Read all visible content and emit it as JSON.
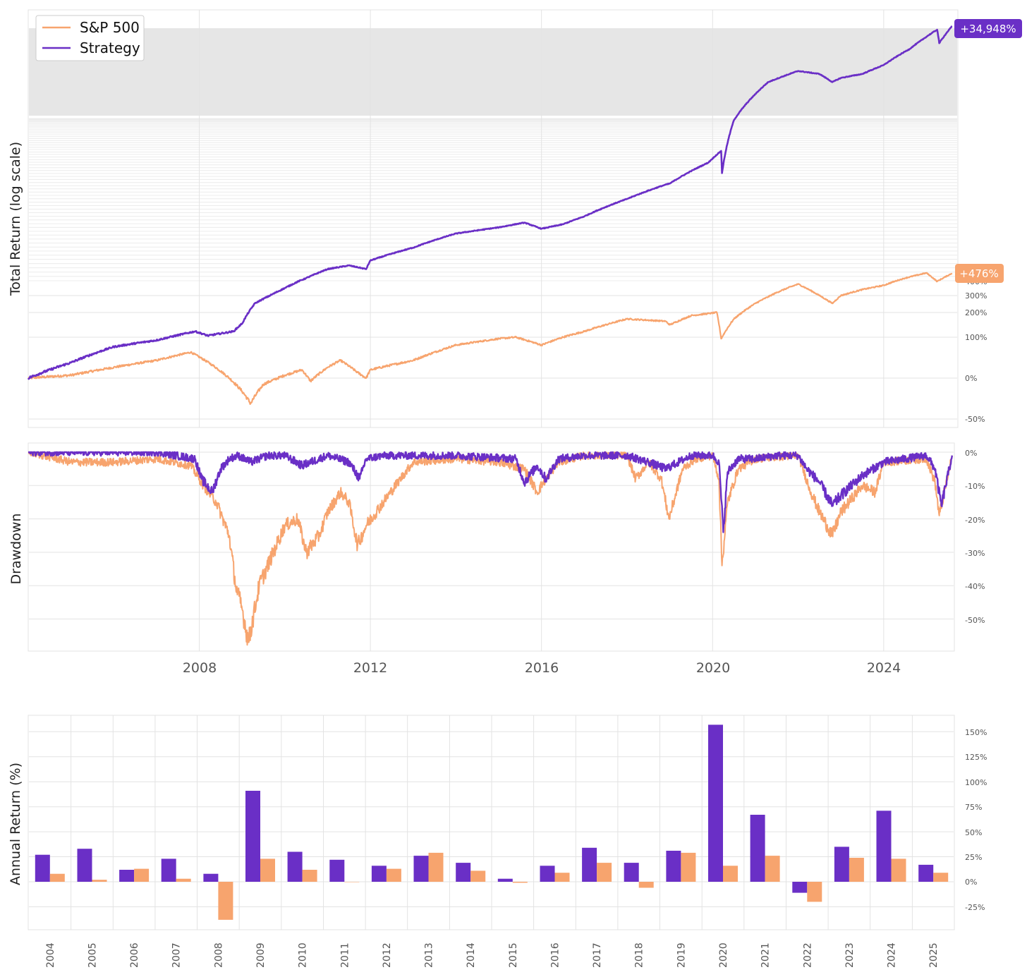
{
  "colors": {
    "strategy": "#6a2fc6",
    "sp500": "#f7a46e",
    "grid": "#e3e3e3",
    "band": "#e6e6e6"
  },
  "legend": {
    "items": [
      "S&P 500",
      "Strategy"
    ],
    "placement": "top-left"
  },
  "labels": {
    "total_return_ylabel": "Total Return (log scale)",
    "drawdown_ylabel": "Drawdown",
    "annual_ylabel": "Annual Return (%)",
    "strategy_final_tag": "+34,948%",
    "sp500_final_tag": "+476%"
  },
  "chart_data": [
    {
      "type": "line",
      "ylabel": "Total Return (log scale)",
      "yscale": "log",
      "yticks": [
        "400%",
        "300%",
        "200%",
        "100%",
        "0%",
        "-50%"
      ],
      "xticks": [
        "2008",
        "2012",
        "2016",
        "2020",
        "2024"
      ],
      "series": [
        {
          "name": "Strategy",
          "x": [
            2004.0,
            2005.0,
            2006.0,
            2007.0,
            2007.9,
            2008.2,
            2008.8,
            2009.0,
            2009.3,
            2010.0,
            2010.5,
            2011.0,
            2011.5,
            2011.9,
            2012.0,
            2013.0,
            2014.0,
            2015.0,
            2015.6,
            2016.0,
            2016.5,
            2017.0,
            2018.0,
            2018.9,
            2019.0,
            2019.9,
            2020.2,
            2020.22,
            2020.5,
            2021.0,
            2021.3,
            2022.0,
            2022.5,
            2022.8,
            2023.0,
            2023.5,
            2024.0,
            2024.6,
            2024.9,
            2025.25,
            2025.3,
            2025.6
          ],
          "values": [
            0,
            30,
            70,
            90,
            120,
            105,
            120,
            150,
            250,
            350,
            430,
            520,
            560,
            520,
            620,
            800,
            1050,
            1180,
            1290,
            1150,
            1250,
            1450,
            2000,
            2550,
            2600,
            3700,
            4500,
            3100,
            7500,
            11500,
            14000,
            16800,
            16000,
            14000,
            15000,
            16000,
            18500,
            24000,
            28000,
            33000,
            26500,
            34948
          ]
        },
        {
          "name": "S&P 500",
          "x": [
            2004.0,
            2005.0,
            2006.0,
            2007.0,
            2007.8,
            2008.3,
            2008.7,
            2009.0,
            2009.2,
            2009.5,
            2010.0,
            2010.4,
            2010.6,
            2011.0,
            2011.3,
            2011.7,
            2011.9,
            2012.0,
            2013.0,
            2014.0,
            2015.0,
            2015.4,
            2016.0,
            2016.5,
            2017.0,
            2018.0,
            2018.9,
            2019.0,
            2019.5,
            2020.1,
            2020.2,
            2020.5,
            2021.0,
            2021.5,
            2022.0,
            2022.5,
            2022.8,
            2023.0,
            2023.5,
            2024.0,
            2024.5,
            2025.0,
            2025.25,
            2025.6
          ],
          "values": [
            0,
            5,
            20,
            35,
            55,
            25,
            0,
            -20,
            -35,
            -10,
            5,
            15,
            -5,
            20,
            35,
            10,
            0,
            15,
            35,
            75,
            95,
            100,
            75,
            100,
            120,
            170,
            160,
            145,
            185,
            200,
            95,
            170,
            250,
            320,
            380,
            300,
            250,
            300,
            340,
            370,
            430,
            480,
            400,
            476
          ]
        }
      ]
    },
    {
      "type": "line",
      "ylabel": "Drawdown",
      "yticks": [
        "0%",
        "-10%",
        "-20%",
        "-30%",
        "-40%",
        "-50%"
      ],
      "xticks": [
        "2008",
        "2012",
        "2016",
        "2020",
        "2024"
      ],
      "series": [
        {
          "name": "Strategy",
          "x": [
            2004.0,
            2007.0,
            2007.9,
            2008.05,
            2008.3,
            2008.5,
            2008.7,
            2008.9,
            2009.2,
            2009.6,
            2010.0,
            2010.4,
            2011.0,
            2011.5,
            2011.75,
            2011.9,
            2012.3,
            2013.0,
            2014.0,
            2015.4,
            2015.6,
            2015.9,
            2016.1,
            2016.4,
            2017.0,
            2018.0,
            2018.5,
            2018.9,
            2019.5,
            2020.0,
            2020.15,
            2020.25,
            2020.35,
            2020.6,
            2021.0,
            2021.5,
            2022.0,
            2022.2,
            2022.5,
            2022.8,
            2023.0,
            2023.5,
            2024.0,
            2025.0,
            2025.2,
            2025.35,
            2025.6
          ],
          "values": [
            0,
            0,
            -2,
            -8,
            -12,
            -5,
            -2,
            -1,
            -3,
            -1,
            -1,
            -4,
            -1,
            -3,
            -8,
            -2,
            -1,
            -1,
            -1,
            -2,
            -9,
            -4,
            -8,
            -2,
            -1,
            -1,
            -3,
            -5,
            -1,
            -1,
            -3,
            -24,
            -6,
            -2,
            -2,
            -1,
            -1,
            -5,
            -9,
            -16,
            -13,
            -7,
            -3,
            -1,
            -5,
            -16,
            -1
          ]
        },
        {
          "name": "S&P 500",
          "x": [
            2004.0,
            2005.0,
            2006.0,
            2007.0,
            2007.8,
            2008.1,
            2008.4,
            2008.7,
            2008.85,
            2009.0,
            2009.15,
            2009.4,
            2009.8,
            2010.0,
            2010.3,
            2010.5,
            2010.8,
            2011.0,
            2011.3,
            2011.5,
            2011.7,
            2011.9,
            2012.3,
            2012.7,
            2013.0,
            2014.0,
            2015.0,
            2015.6,
            2015.9,
            2016.1,
            2016.4,
            2017.0,
            2018.0,
            2018.2,
            2018.5,
            2018.8,
            2018.98,
            2019.3,
            2019.6,
            2020.0,
            2020.15,
            2020.22,
            2020.35,
            2020.6,
            2021.0,
            2022.0,
            2022.3,
            2022.5,
            2022.8,
            2023.0,
            2023.5,
            2023.8,
            2024.0,
            2025.0,
            2025.2,
            2025.3,
            2025.6
          ],
          "values": [
            0,
            -3,
            -3,
            -2,
            -4,
            -10,
            -15,
            -25,
            -40,
            -47,
            -57,
            -40,
            -28,
            -22,
            -20,
            -30,
            -25,
            -18,
            -12,
            -15,
            -28,
            -22,
            -15,
            -8,
            -3,
            -2,
            -3,
            -5,
            -12,
            -8,
            -3,
            -1,
            -1,
            -8,
            -3,
            -8,
            -20,
            -5,
            -2,
            -1,
            -8,
            -34,
            -15,
            -5,
            -2,
            -1,
            -12,
            -18,
            -25,
            -18,
            -10,
            -12,
            -3,
            -2,
            -9,
            -19,
            -1
          ]
        }
      ]
    },
    {
      "type": "bar",
      "ylabel": "Annual Return (%)",
      "yticks": [
        "150%",
        "125%",
        "100%",
        "75%",
        "50%",
        "25%",
        "0%",
        "-25%"
      ],
      "categories": [
        "2004",
        "2005",
        "2006",
        "2007",
        "2008",
        "2009",
        "2010",
        "2011",
        "2012",
        "2013",
        "2014",
        "2015",
        "2016",
        "2017",
        "2018",
        "2019",
        "2020",
        "2021",
        "2022",
        "2023",
        "2024",
        "2025"
      ],
      "series": [
        {
          "name": "Strategy",
          "values": [
            27,
            33,
            12,
            23,
            8,
            91,
            30,
            22,
            16,
            26,
            19,
            3,
            16,
            34,
            19,
            31,
            157,
            67,
            -11,
            35,
            71,
            17
          ]
        },
        {
          "name": "S&P 500",
          "values": [
            8,
            2,
            13,
            3,
            -38,
            23,
            12,
            0,
            13,
            29,
            11,
            -1,
            9,
            19,
            -6,
            29,
            16,
            26,
            -20,
            24,
            23,
            9
          ]
        }
      ]
    }
  ]
}
